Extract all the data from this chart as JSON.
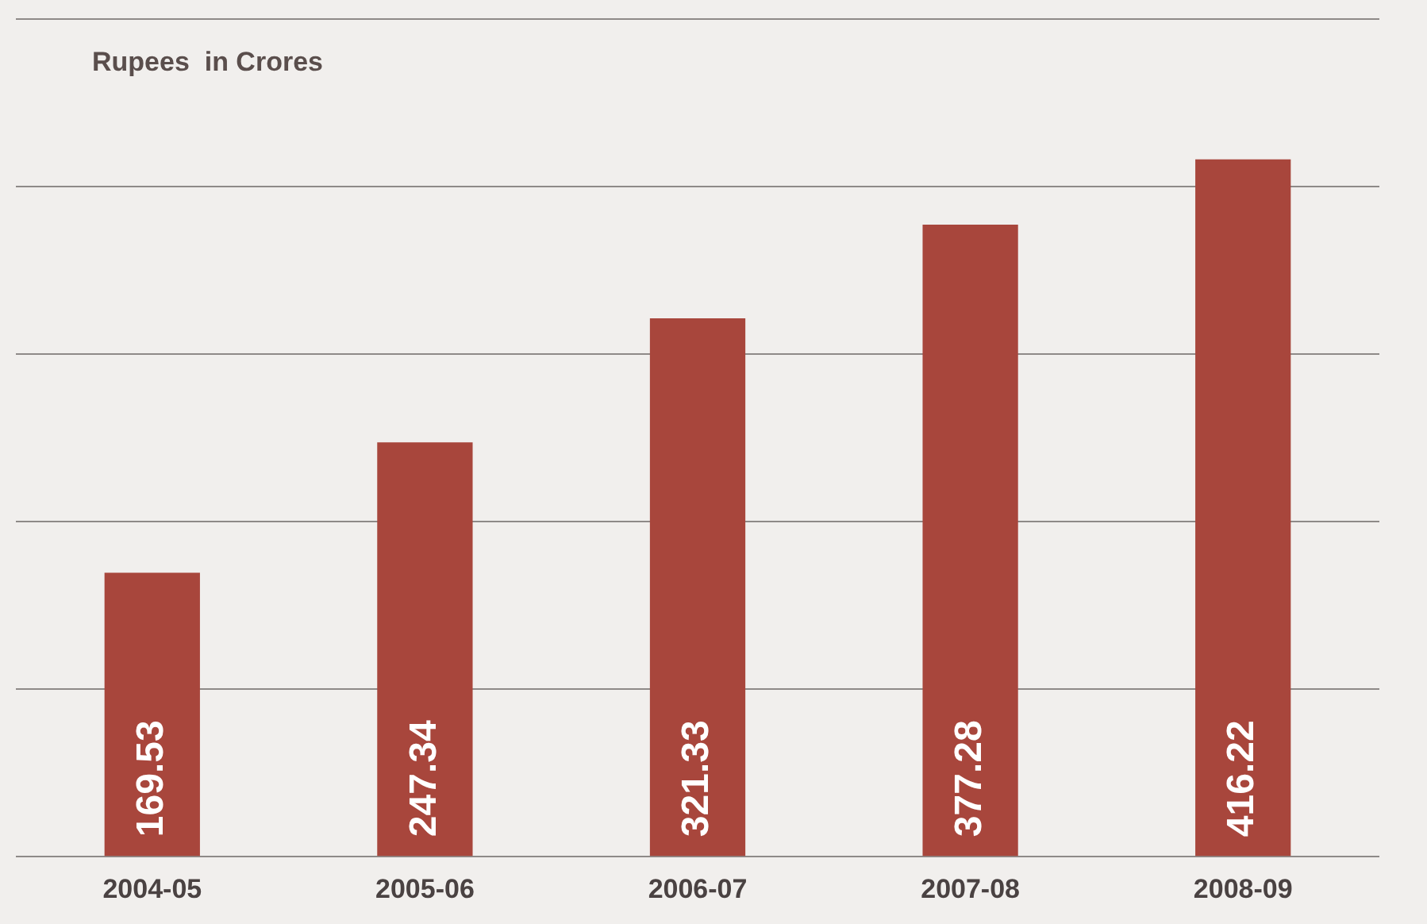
{
  "chart_data": {
    "type": "bar",
    "ylabel": "Rupees  in Crores",
    "categories": [
      "2004-05",
      "2005-06",
      "2006-07",
      "2007-08",
      "2008-09"
    ],
    "values": [
      169.53,
      247.34,
      321.33,
      377.28,
      416.22
    ],
    "color": "#a8463c",
    "data_labels": true,
    "grid": "y",
    "tick_labels": "x",
    "legend": false
  }
}
